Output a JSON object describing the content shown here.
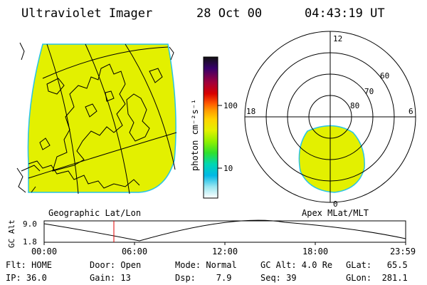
{
  "header": {
    "instrument": "Ultraviolet Imager",
    "date": "28 Oct 00",
    "time": "04:43:19 UT"
  },
  "colors": {
    "emission": "#e3f000",
    "emission_edge": "#26c4e8"
  },
  "geo_panel": {
    "label": "Geographic Lat/Lon"
  },
  "colorbar": {
    "unit_label": "photon cm⁻²s⁻¹",
    "tick_labels": [
      "100",
      "10"
    ],
    "stops": [
      "#111111",
      "#37006a",
      "#a0003c",
      "#d80000",
      "#ff5a00",
      "#ff9c00",
      "#ffd200",
      "#e3f000",
      "#8ef000",
      "#2ee02e",
      "#00d6b4",
      "#00b8e6",
      "#9ae6f0",
      "#ffffff"
    ]
  },
  "polar_panel": {
    "label": "Apex MLat/MLT",
    "mlt_labels": [
      "12",
      "18",
      "6",
      "0"
    ],
    "mlat_labels": [
      "60",
      "70",
      "80"
    ]
  },
  "altitude_plot": {
    "ylabel": "GC Alt",
    "y_ticks": [
      "9.0",
      "1.8"
    ],
    "x_ticks": [
      "00:00",
      "06:00",
      "12:00",
      "18:00",
      "23:59"
    ],
    "current_marker_time": "04:43"
  },
  "footer": {
    "flt": "Flt: HOME",
    "ip": "IP: 36.0",
    "door": "Door: Open",
    "gain": "Gain: 13",
    "mode": "Mode: Normal",
    "dsp": "Dsp:    7.9",
    "gc_alt": "GC Alt: 4.0 Re",
    "seq": "Seq: 39",
    "glat": "GLat:   65.5",
    "glon": "GLon:  281.1"
  }
}
